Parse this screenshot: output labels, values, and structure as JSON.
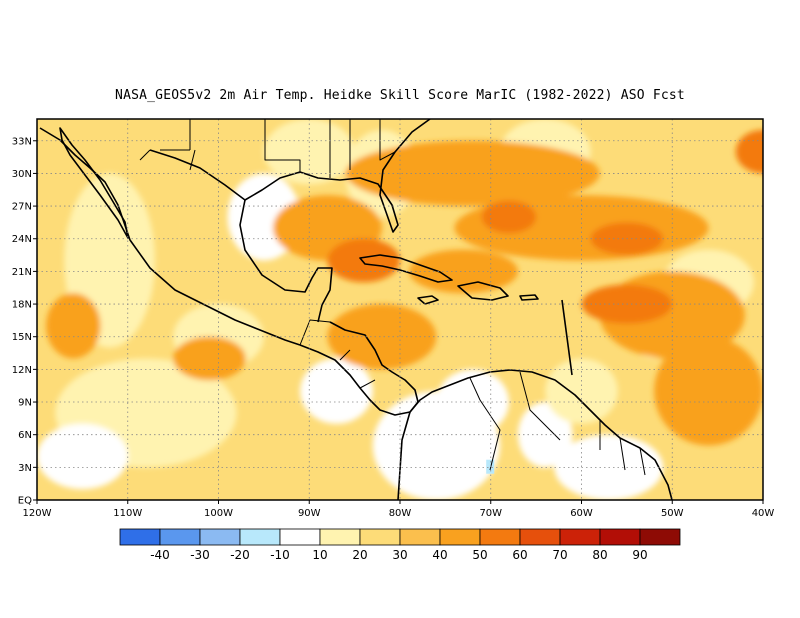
{
  "title": "NASA_GEOS5v2  2m Air Temp. Heidke Skill Score MarIC (1982-2022) ASO Fcst",
  "map": {
    "lon_range": [
      -120,
      -40
    ],
    "lat_range": [
      0,
      35
    ],
    "x_ticks": [
      "120W",
      "110W",
      "100W",
      "90W",
      "80W",
      "70W",
      "60W",
      "50W",
      "40W"
    ],
    "y_ticks": [
      "EQ",
      "3N",
      "6N",
      "9N",
      "12N",
      "15N",
      "18N",
      "21N",
      "24N",
      "27N",
      "30N",
      "33N"
    ],
    "gridlines": "dotted"
  },
  "colorbar": {
    "labels": [
      "-40",
      "-30",
      "-20",
      "-10",
      "10",
      "20",
      "30",
      "40",
      "50",
      "60",
      "70",
      "80",
      "90"
    ],
    "colors": [
      "#2f6fe8",
      "#5a97ee",
      "#8bbaf2",
      "#b8e8fb",
      "#ffffff",
      "#fff3b0",
      "#fddc78",
      "#fbbf4d",
      "#f9a11f",
      "#f37a10",
      "#e6500c",
      "#cc2208",
      "#b20e06",
      "#8e0b05"
    ]
  },
  "field_colors": {
    "ocean_base": "#fddc78",
    "light": "#fff3b0",
    "white": "#ffffff",
    "orange": "#f9a11f",
    "deep_orange": "#f37a10",
    "red_orange": "#e6500c",
    "cyan": "#b8e8fb"
  }
}
